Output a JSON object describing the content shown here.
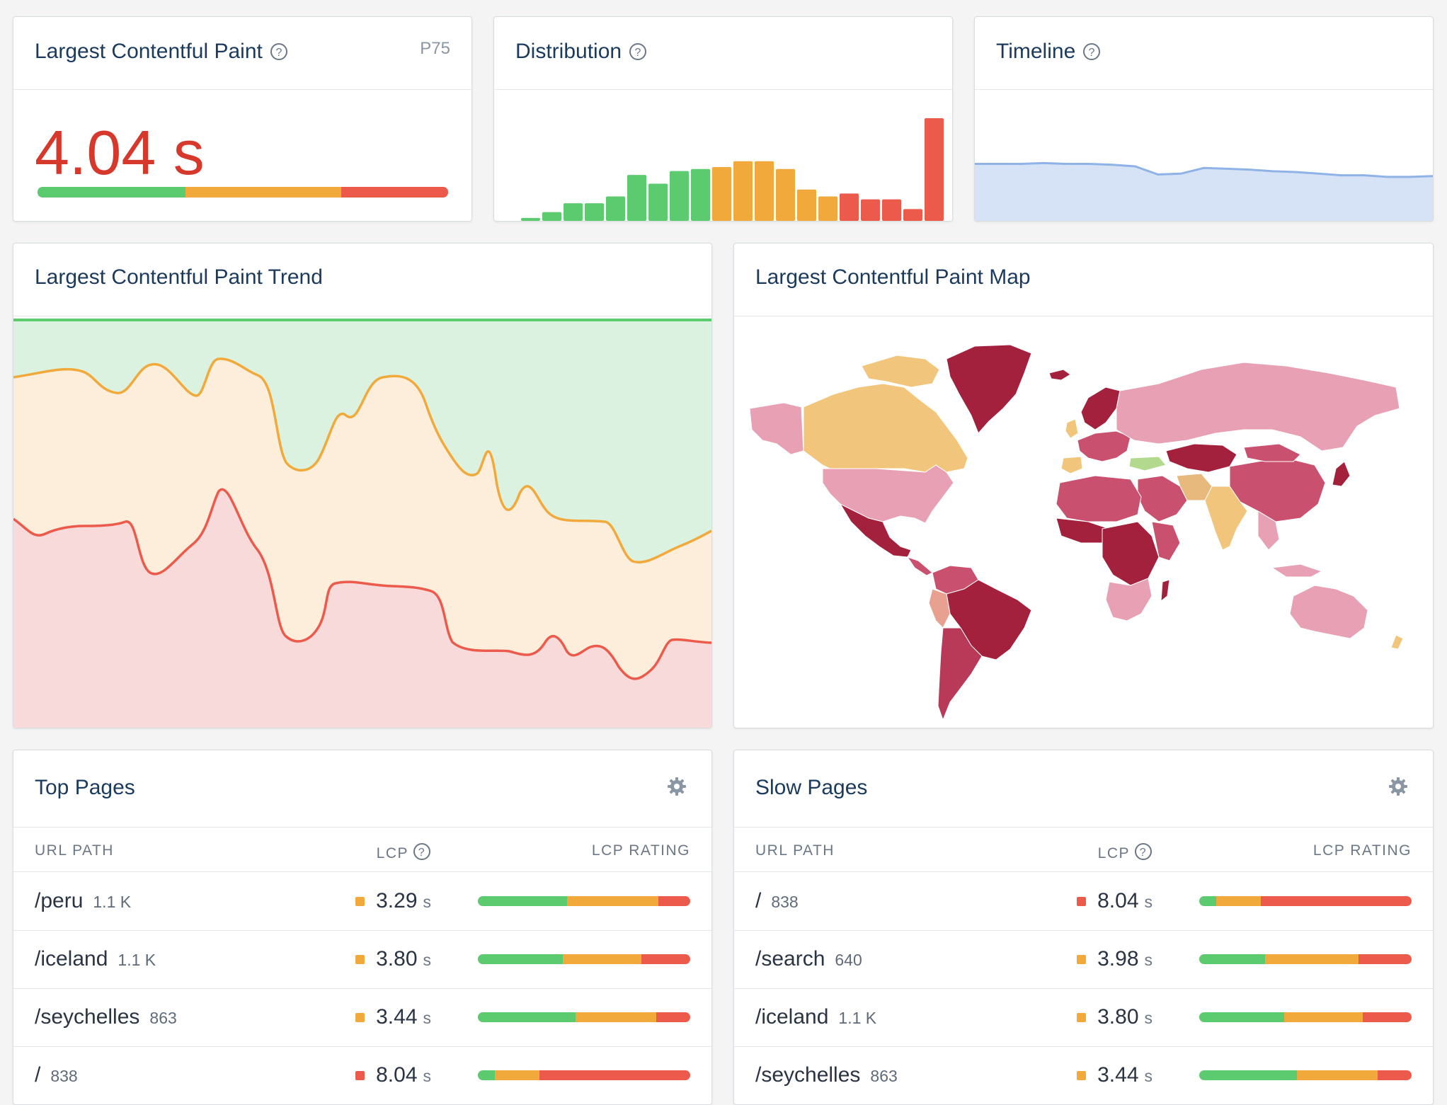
{
  "summary": {
    "title": "Largest Contentful Paint",
    "percentile_label": "P75",
    "value": "4.04 s",
    "rating_split": [
      0.36,
      0.38,
      0.26
    ]
  },
  "distribution": {
    "title": "Distribution",
    "bar_values": [
      3,
      9,
      18,
      18,
      25,
      47,
      38,
      51,
      53,
      55,
      61,
      61,
      53,
      32,
      25,
      28,
      22,
      22,
      12,
      105
    ],
    "bar_classes": [
      "good",
      "good",
      "good",
      "good",
      "good",
      "good",
      "good",
      "good",
      "good",
      "mid",
      "mid",
      "mid",
      "mid",
      "mid",
      "mid",
      "poor",
      "poor",
      "poor",
      "poor",
      "poor"
    ]
  },
  "timeline": {
    "title": "Timeline",
    "values": [
      70,
      70,
      70,
      71,
      70,
      70,
      69,
      67,
      57,
      58,
      65,
      64,
      63,
      61,
      60,
      58,
      56,
      56,
      54,
      54,
      55
    ]
  },
  "trend": {
    "title": "Largest Contentful Paint Trend"
  },
  "map": {
    "title": "Largest Contentful Paint Map"
  },
  "colors": {
    "good": "#5ccb70",
    "needs_improvement": "#f2a93b",
    "poor": "#ec5a4c",
    "title": "#1b3a5c",
    "value_poor": "#d6382b"
  },
  "top_pages": {
    "title": "Top Pages",
    "columns": {
      "url": "URL PATH",
      "lcp": "LCP",
      "rating": "LCP RATING"
    },
    "rows": [
      {
        "path": "/peru",
        "count": "1.1 K",
        "lcp": "3.29",
        "unit": "s",
        "status": "mid",
        "split": [
          0.42,
          0.43,
          0.15
        ]
      },
      {
        "path": "/iceland",
        "count": "1.1 K",
        "lcp": "3.80",
        "unit": "s",
        "status": "mid",
        "split": [
          0.4,
          0.37,
          0.23
        ]
      },
      {
        "path": "/seychelles",
        "count": "863",
        "lcp": "3.44",
        "unit": "s",
        "status": "mid",
        "split": [
          0.46,
          0.38,
          0.16
        ]
      },
      {
        "path": "/",
        "count": "838",
        "lcp": "8.04",
        "unit": "s",
        "status": "poor",
        "split": [
          0.08,
          0.21,
          0.71
        ]
      }
    ]
  },
  "slow_pages": {
    "title": "Slow Pages",
    "columns": {
      "url": "URL PATH",
      "lcp": "LCP",
      "rating": "LCP RATING"
    },
    "rows": [
      {
        "path": "/",
        "count": "838",
        "lcp": "8.04",
        "unit": "s",
        "status": "poor",
        "split": [
          0.08,
          0.21,
          0.71
        ]
      },
      {
        "path": "/search",
        "count": "640",
        "lcp": "3.98",
        "unit": "s",
        "status": "mid",
        "split": [
          0.31,
          0.44,
          0.25
        ]
      },
      {
        "path": "/iceland",
        "count": "1.1 K",
        "lcp": "3.80",
        "unit": "s",
        "status": "mid",
        "split": [
          0.4,
          0.37,
          0.23
        ]
      },
      {
        "path": "/seychelles",
        "count": "863",
        "lcp": "3.44",
        "unit": "s",
        "status": "mid",
        "split": [
          0.46,
          0.38,
          0.16
        ]
      }
    ]
  }
}
